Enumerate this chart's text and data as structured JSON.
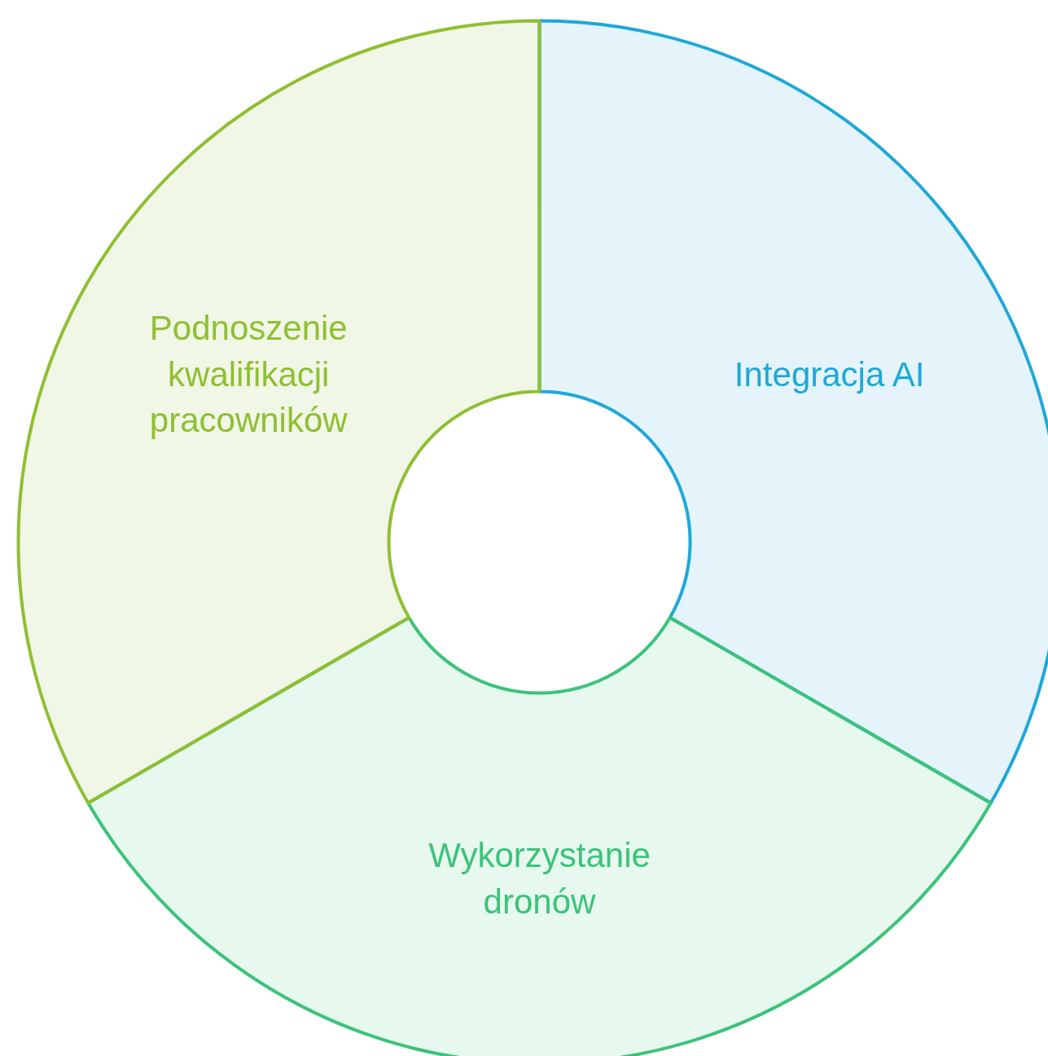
{
  "chart_data": {
    "type": "donut",
    "categories": [
      "Integracja AI",
      "Wykorzystanie dronów",
      "Podnoszenie kwalifikacji pracowników"
    ],
    "values": [
      33.33,
      33.33,
      33.33
    ],
    "colors": [
      "#1ea8d8",
      "#3cc37a",
      "#8fbf32"
    ]
  }
}
